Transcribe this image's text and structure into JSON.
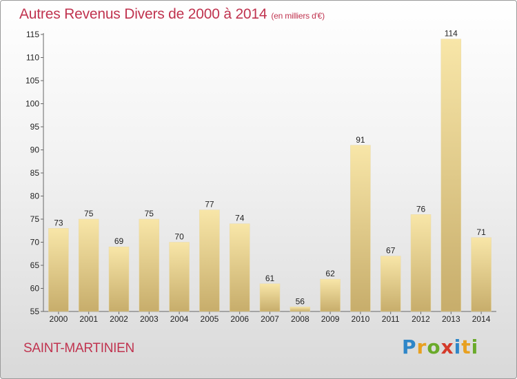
{
  "chart_data": {
    "type": "bar",
    "title": "Autres Revenus Divers de 2000 à 2014",
    "unit_label": "(en milliers d'€)",
    "categories": [
      "2000",
      "2001",
      "2002",
      "2003",
      "2004",
      "2005",
      "2006",
      "2007",
      "2008",
      "2009",
      "2010",
      "2011",
      "2012",
      "2013",
      "2014"
    ],
    "values": [
      73,
      75,
      69,
      75,
      70,
      77,
      74,
      61,
      56,
      62,
      91,
      67,
      76,
      114,
      71
    ],
    "xlabel": "",
    "ylabel": "",
    "ylim": [
      55,
      115
    ],
    "yticks": [
      55,
      60,
      65,
      70,
      75,
      80,
      85,
      90,
      95,
      100,
      105,
      110,
      115
    ],
    "grid": false,
    "colors": {
      "bar_light": "#f7e3a3",
      "bar_dark": "#c8ae6c",
      "title": "#c0334f"
    }
  },
  "footer": {
    "commune": "SAINT-MARTINIEN",
    "logo_letters": [
      {
        "ch": "P",
        "color": "#2e86c8"
      },
      {
        "ch": "r",
        "color": "#e8a020"
      },
      {
        "ch": "o",
        "color": "#6aaa2a"
      },
      {
        "ch": "x",
        "color": "#d43a2a"
      },
      {
        "ch": "i",
        "color": "#2e86c8"
      },
      {
        "ch": "t",
        "color": "#e8a020"
      },
      {
        "ch": "i",
        "color": "#6aaa2a"
      }
    ]
  }
}
